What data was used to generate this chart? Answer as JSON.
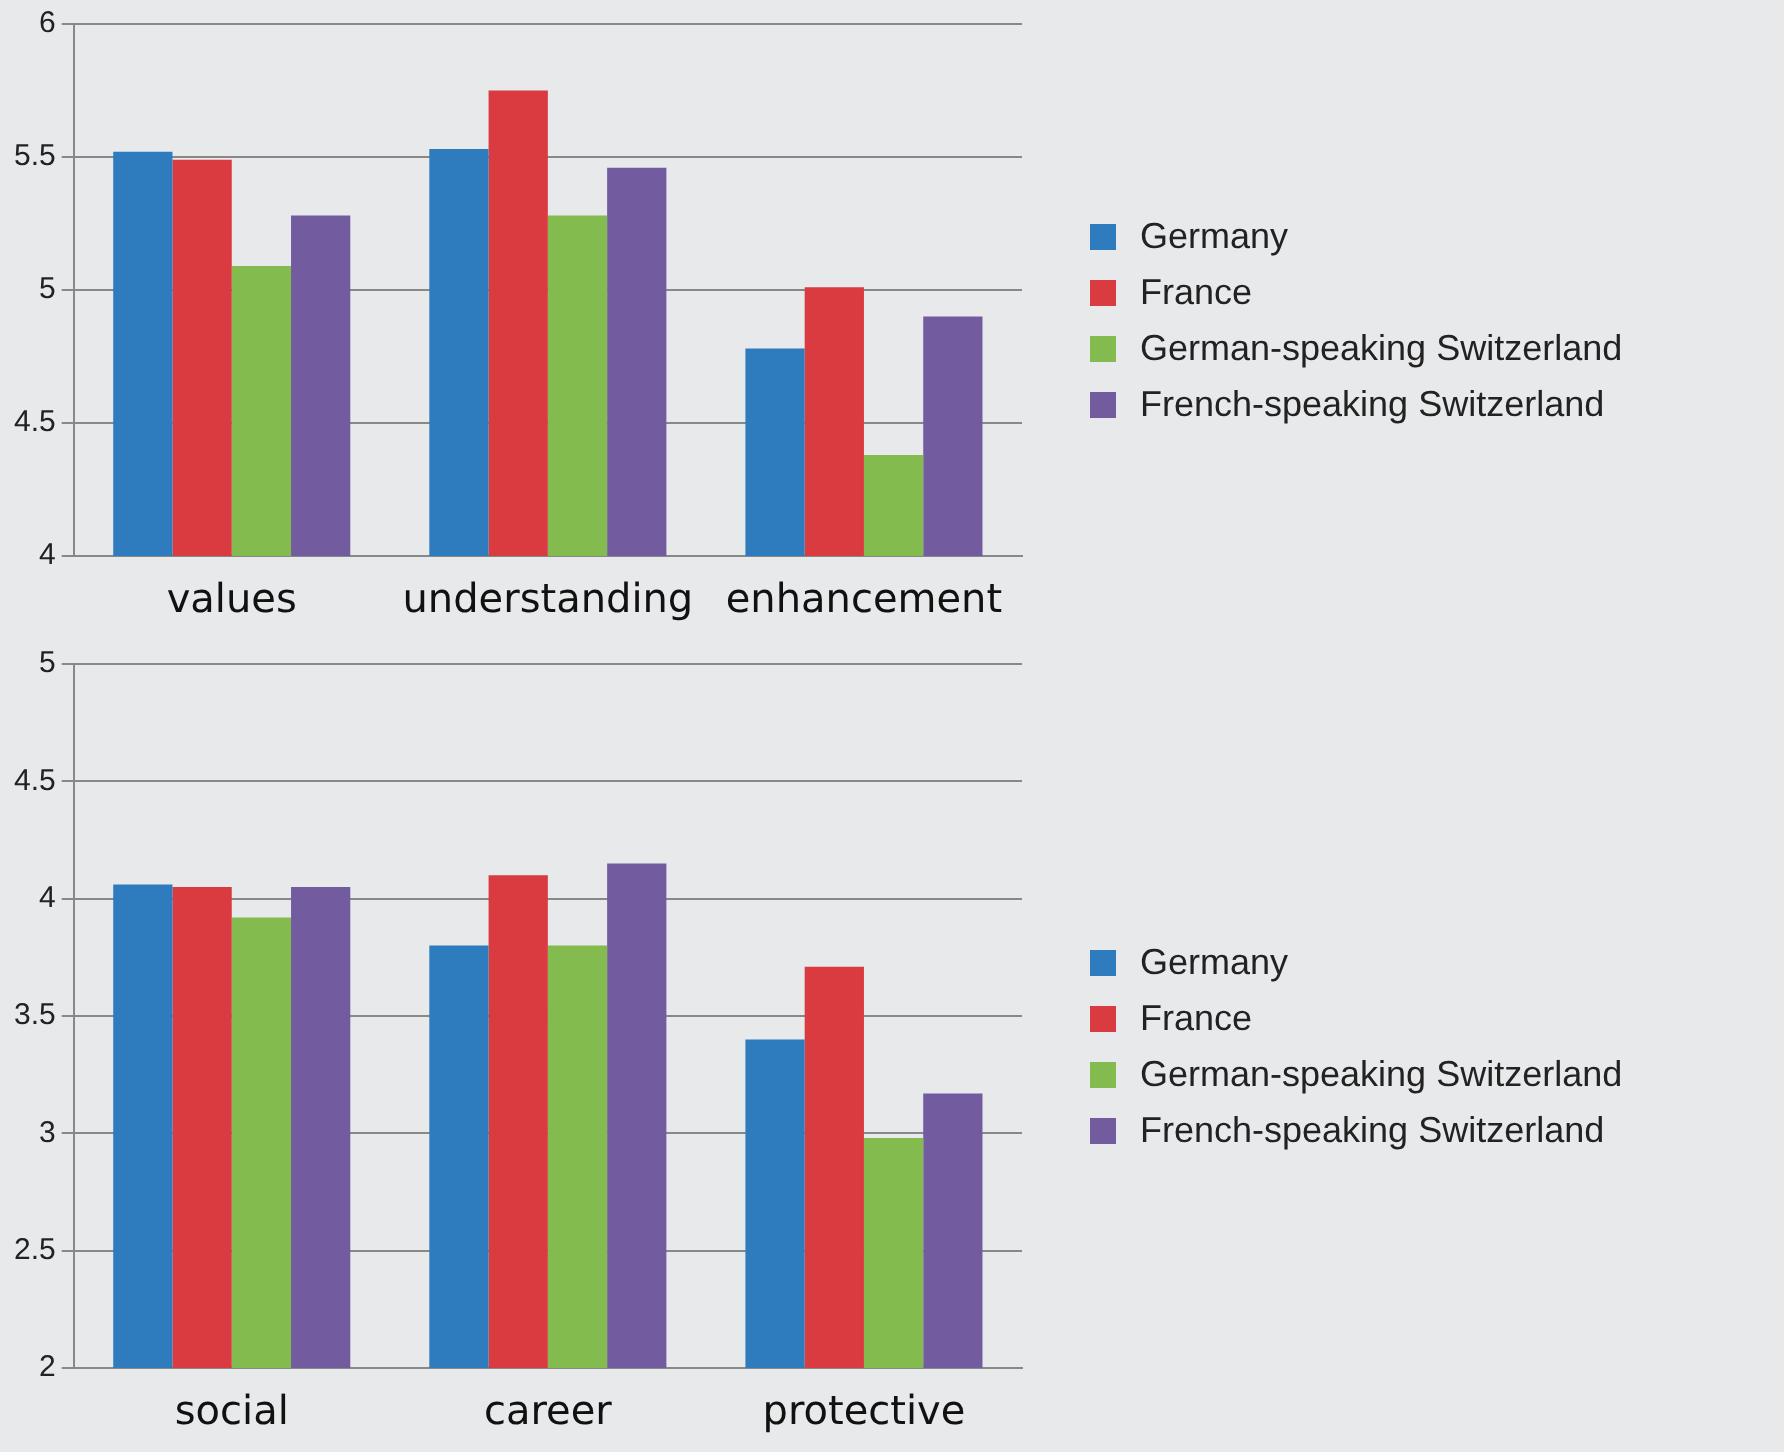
{
  "chart_data": [
    {
      "type": "bar",
      "categories": [
        "values",
        "understanding",
        "enhancement"
      ],
      "series": [
        {
          "name": "Germany",
          "color": "#2e7bbd",
          "values": [
            5.52,
            5.53,
            4.78
          ]
        },
        {
          "name": "France",
          "color": "#d93b41",
          "values": [
            5.49,
            5.75,
            5.01
          ]
        },
        {
          "name": "German-speaking Switzerland",
          "color": "#84bb4f",
          "values": [
            5.09,
            5.28,
            4.38
          ]
        },
        {
          "name": "French-speaking Switzerland",
          "color": "#735ba0",
          "values": [
            5.28,
            5.46,
            4.9
          ]
        }
      ],
      "ylim": [
        4,
        6
      ],
      "yticks": [
        4,
        4.5,
        5,
        5.5,
        6
      ],
      "grid": "y",
      "legend": "right"
    },
    {
      "type": "bar",
      "categories": [
        "social",
        "career",
        "protective"
      ],
      "series": [
        {
          "name": "Germany",
          "color": "#2e7bbd",
          "values": [
            4.06,
            3.8,
            3.4
          ]
        },
        {
          "name": "France",
          "color": "#d93b41",
          "values": [
            4.05,
            4.1,
            3.71
          ]
        },
        {
          "name": "German-speaking Switzerland",
          "color": "#84bb4f",
          "values": [
            3.92,
            3.8,
            2.98
          ]
        },
        {
          "name": "French-speaking Switzerland",
          "color": "#735ba0",
          "values": [
            4.05,
            4.15,
            3.17
          ]
        }
      ],
      "ylim": [
        2,
        5
      ],
      "yticks": [
        2,
        2.5,
        3,
        3.5,
        4,
        4.5,
        5
      ],
      "grid": "y",
      "legend": "right"
    }
  ]
}
